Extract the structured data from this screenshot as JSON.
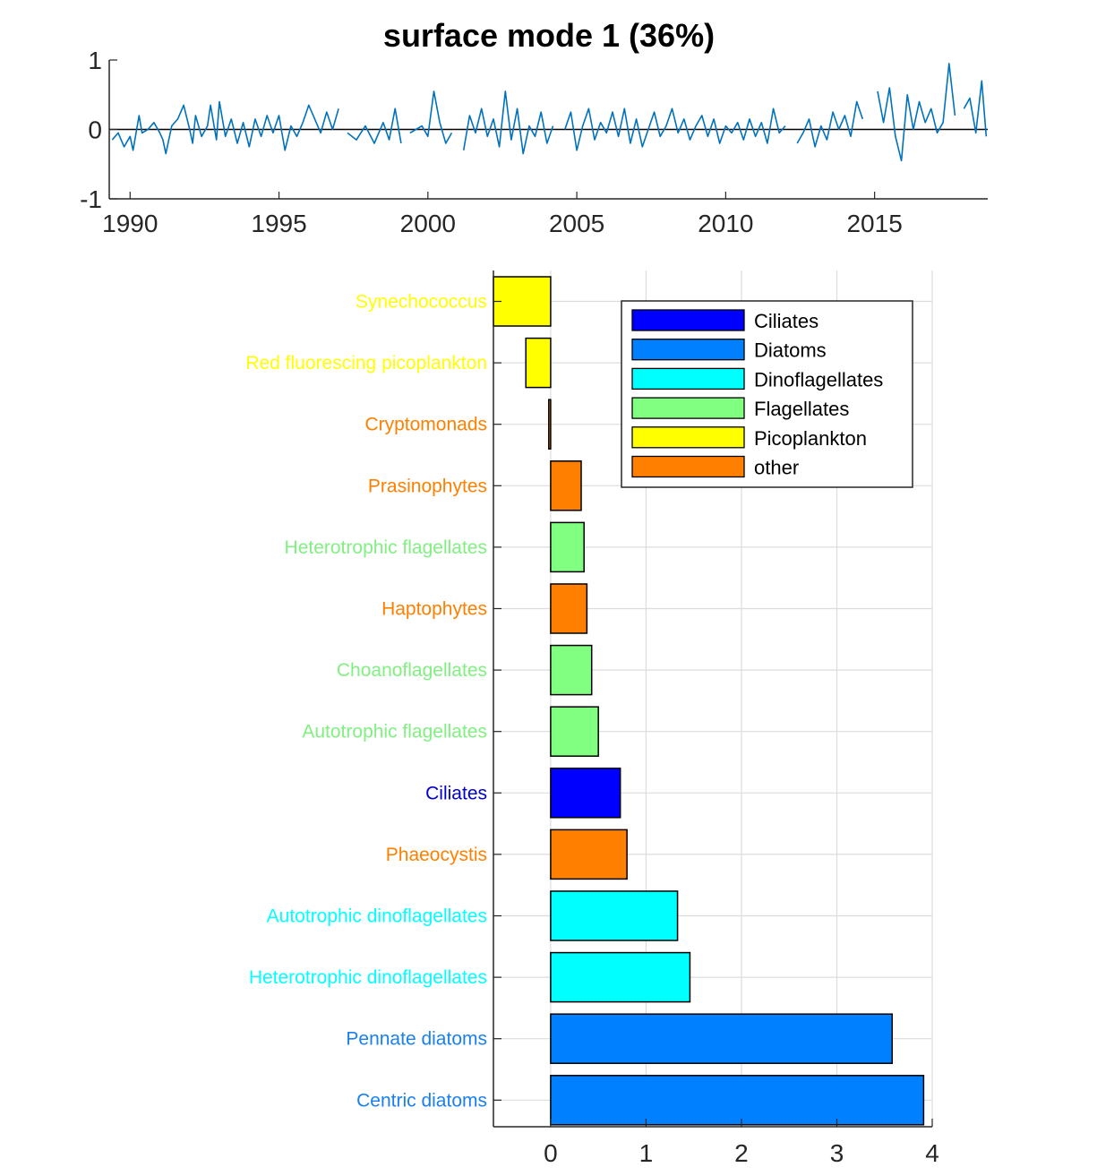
{
  "chart_data": [
    {
      "type": "line",
      "title": "surface mode 1 (36%)",
      "xlabel": "",
      "ylabel": "",
      "xlim": [
        1989.3,
        2018.8
      ],
      "ylim": [
        -1,
        1
      ],
      "x_ticks": [
        "1990",
        "1995",
        "2000",
        "2005",
        "2010",
        "2015"
      ],
      "y_ticks": [
        "1",
        "0",
        "-1"
      ],
      "zero_line": true,
      "grid": false,
      "line_color": "#0072BD",
      "series": [
        {
          "name": "",
          "points": [
            [
              1989.4,
              -0.15
            ],
            [
              1989.6,
              -0.05
            ],
            [
              1989.8,
              -0.25
            ],
            [
              1990.0,
              -0.1
            ],
            [
              1990.1,
              -0.3
            ],
            [
              1990.3,
              0.2
            ],
            [
              1990.4,
              -0.05
            ],
            [
              1990.6,
              0.0
            ],
            [
              1990.8,
              0.1
            ],
            [
              1991.0,
              -0.05
            ],
            [
              1991.1,
              -0.15
            ],
            [
              1991.2,
              -0.35
            ],
            [
              1991.4,
              0.05
            ],
            [
              1991.6,
              0.15
            ],
            [
              1991.8,
              0.35
            ],
            [
              1992.0,
              0.0
            ],
            [
              1992.1,
              -0.2
            ],
            [
              1992.2,
              0.2
            ],
            [
              1992.4,
              -0.1
            ],
            [
              1992.6,
              0.05
            ],
            [
              1992.7,
              0.35
            ],
            [
              1992.9,
              -0.15
            ],
            [
              1993.0,
              0.4
            ],
            [
              1993.2,
              -0.1
            ],
            [
              1993.4,
              0.15
            ],
            [
              1993.6,
              -0.2
            ],
            [
              1993.8,
              0.1
            ],
            [
              1994.0,
              -0.25
            ],
            [
              1994.2,
              0.15
            ],
            [
              1994.4,
              -0.1
            ],
            [
              1994.6,
              0.2
            ],
            [
              1994.8,
              -0.05
            ],
            [
              1995.0,
              0.2
            ],
            [
              1995.2,
              -0.3
            ],
            [
              1995.4,
              0.05
            ],
            [
              1995.6,
              -0.1
            ],
            [
              1995.8,
              0.1
            ],
            [
              1996.0,
              0.35
            ],
            [
              1996.2,
              0.15
            ],
            [
              1996.4,
              -0.05
            ],
            [
              1996.6,
              0.25
            ],
            [
              1996.8,
              0.0
            ],
            [
              1997.0,
              0.3
            ],
            null,
            [
              1997.3,
              -0.05
            ],
            [
              1997.6,
              -0.15
            ],
            [
              1997.9,
              0.05
            ],
            [
              1998.2,
              -0.2
            ],
            [
              1998.5,
              0.1
            ],
            [
              1998.7,
              -0.15
            ],
            [
              1998.9,
              0.3
            ],
            [
              1999.1,
              -0.2
            ],
            null,
            [
              1999.4,
              -0.05
            ],
            [
              1999.6,
              0.0
            ],
            [
              1999.8,
              0.05
            ],
            [
              2000.0,
              -0.1
            ],
            [
              2000.2,
              0.55
            ],
            [
              2000.4,
              0.1
            ],
            [
              2000.6,
              -0.2
            ],
            [
              2000.8,
              -0.05
            ],
            null,
            [
              2001.2,
              -0.3
            ],
            [
              2001.4,
              0.2
            ],
            [
              2001.6,
              -0.05
            ],
            [
              2001.8,
              0.3
            ],
            [
              2002.0,
              -0.1
            ],
            [
              2002.2,
              0.15
            ],
            [
              2002.4,
              -0.25
            ],
            [
              2002.6,
              0.55
            ],
            [
              2002.8,
              -0.15
            ],
            [
              2003.0,
              0.3
            ],
            [
              2003.2,
              -0.35
            ],
            [
              2003.4,
              0.05
            ],
            [
              2003.6,
              -0.1
            ],
            [
              2003.8,
              0.25
            ],
            [
              2004.0,
              -0.2
            ],
            [
              2004.2,
              0.05
            ],
            null,
            [
              2004.6,
              0.0
            ],
            [
              2004.8,
              0.25
            ],
            [
              2005.0,
              -0.3
            ],
            [
              2005.2,
              0.05
            ],
            [
              2005.4,
              0.3
            ],
            [
              2005.6,
              -0.15
            ],
            [
              2005.8,
              0.1
            ],
            [
              2006.0,
              -0.05
            ],
            [
              2006.2,
              0.25
            ],
            [
              2006.4,
              -0.1
            ],
            [
              2006.6,
              0.3
            ],
            [
              2006.8,
              -0.2
            ],
            [
              2007.0,
              0.15
            ],
            [
              2007.2,
              -0.25
            ],
            [
              2007.4,
              0.0
            ],
            [
              2007.6,
              0.25
            ],
            [
              2007.8,
              -0.1
            ],
            [
              2008.0,
              0.05
            ],
            [
              2008.2,
              0.3
            ],
            [
              2008.4,
              -0.05
            ],
            [
              2008.6,
              0.15
            ],
            [
              2008.8,
              -0.15
            ],
            [
              2009.0,
              0.05
            ],
            [
              2009.2,
              0.2
            ],
            [
              2009.4,
              -0.1
            ],
            [
              2009.6,
              0.15
            ],
            [
              2009.8,
              -0.2
            ],
            [
              2010.0,
              0.05
            ],
            [
              2010.2,
              -0.05
            ],
            [
              2010.4,
              0.1
            ],
            [
              2010.6,
              -0.15
            ],
            [
              2010.8,
              0.15
            ],
            [
              2011.0,
              -0.1
            ],
            [
              2011.2,
              0.1
            ],
            [
              2011.4,
              -0.2
            ],
            [
              2011.6,
              0.3
            ],
            [
              2011.8,
              -0.05
            ],
            [
              2012.0,
              0.05
            ],
            null,
            [
              2012.4,
              -0.2
            ],
            [
              2012.6,
              -0.05
            ],
            [
              2012.8,
              0.15
            ],
            [
              2013.0,
              -0.25
            ],
            [
              2013.2,
              0.05
            ],
            [
              2013.4,
              -0.15
            ],
            [
              2013.6,
              0.25
            ],
            [
              2013.8,
              0.0
            ],
            [
              2014.0,
              0.2
            ],
            [
              2014.2,
              -0.1
            ],
            [
              2014.4,
              0.4
            ],
            [
              2014.6,
              0.15
            ],
            null,
            [
              2015.1,
              0.55
            ],
            [
              2015.3,
              0.1
            ],
            [
              2015.5,
              0.6
            ],
            [
              2015.7,
              -0.1
            ],
            [
              2015.9,
              -0.45
            ],
            [
              2016.1,
              0.5
            ],
            [
              2016.3,
              0.0
            ],
            [
              2016.5,
              0.4
            ],
            [
              2016.7,
              0.1
            ],
            [
              2016.9,
              0.3
            ],
            [
              2017.1,
              -0.05
            ],
            [
              2017.3,
              0.1
            ],
            [
              2017.5,
              0.95
            ],
            [
              2017.7,
              0.2
            ],
            null,
            [
              2018.0,
              0.3
            ],
            [
              2018.2,
              0.45
            ],
            [
              2018.4,
              -0.05
            ],
            [
              2018.6,
              0.7
            ],
            [
              2018.75,
              -0.1
            ]
          ]
        }
      ]
    },
    {
      "type": "bar",
      "orientation": "horizontal",
      "title": "",
      "xlabel": "",
      "ylabel": "",
      "xlim": [
        -0.6,
        4
      ],
      "x_ticks": [
        "0",
        "1",
        "2",
        "3",
        "4"
      ],
      "grid": true,
      "legend_position": "top-right",
      "categories": [
        "Synechococcus",
        "Red fluorescing picoplankton",
        "Cryptomonads",
        "Prasinophytes",
        "Heterotrophic flagellates",
        "Haptophytes",
        "Choanoflagellates",
        "Autotrophic flagellates",
        "Ciliates",
        "Phaeocystis",
        "Autotrophic dinoflagellates",
        "Heterotrophic dinoflagellates",
        "Pennate diatoms",
        "Centric diatoms"
      ],
      "values": [
        -0.6,
        -0.26,
        -0.02,
        0.32,
        0.35,
        0.38,
        0.43,
        0.5,
        0.73,
        0.8,
        1.33,
        1.46,
        3.58,
        3.91
      ],
      "groups": [
        "Picoplankton",
        "Picoplankton",
        "other",
        "other",
        "Flagellates",
        "other",
        "Flagellates",
        "Flagellates",
        "Ciliates",
        "other",
        "Dinoflagellates",
        "Dinoflagellates",
        "Diatoms",
        "Diatoms"
      ],
      "legend": [
        {
          "name": "Ciliates",
          "color": "#0000ff"
        },
        {
          "name": "Diatoms",
          "color": "#0080ff"
        },
        {
          "name": "Dinoflagellates",
          "color": "#00ffff"
        },
        {
          "name": "Flagellates",
          "color": "#80ff80"
        },
        {
          "name": "Picoplankton",
          "color": "#ffff00"
        },
        {
          "name": "other",
          "color": "#ff8000"
        }
      ],
      "label_colors": {
        "Ciliates": "#0000cc",
        "Diatoms": "#1a80f0",
        "Dinoflagellates": "#00ffff",
        "Flagellates": "#80f080",
        "Picoplankton": "#ffff00",
        "other": "#ff8000"
      }
    }
  ]
}
